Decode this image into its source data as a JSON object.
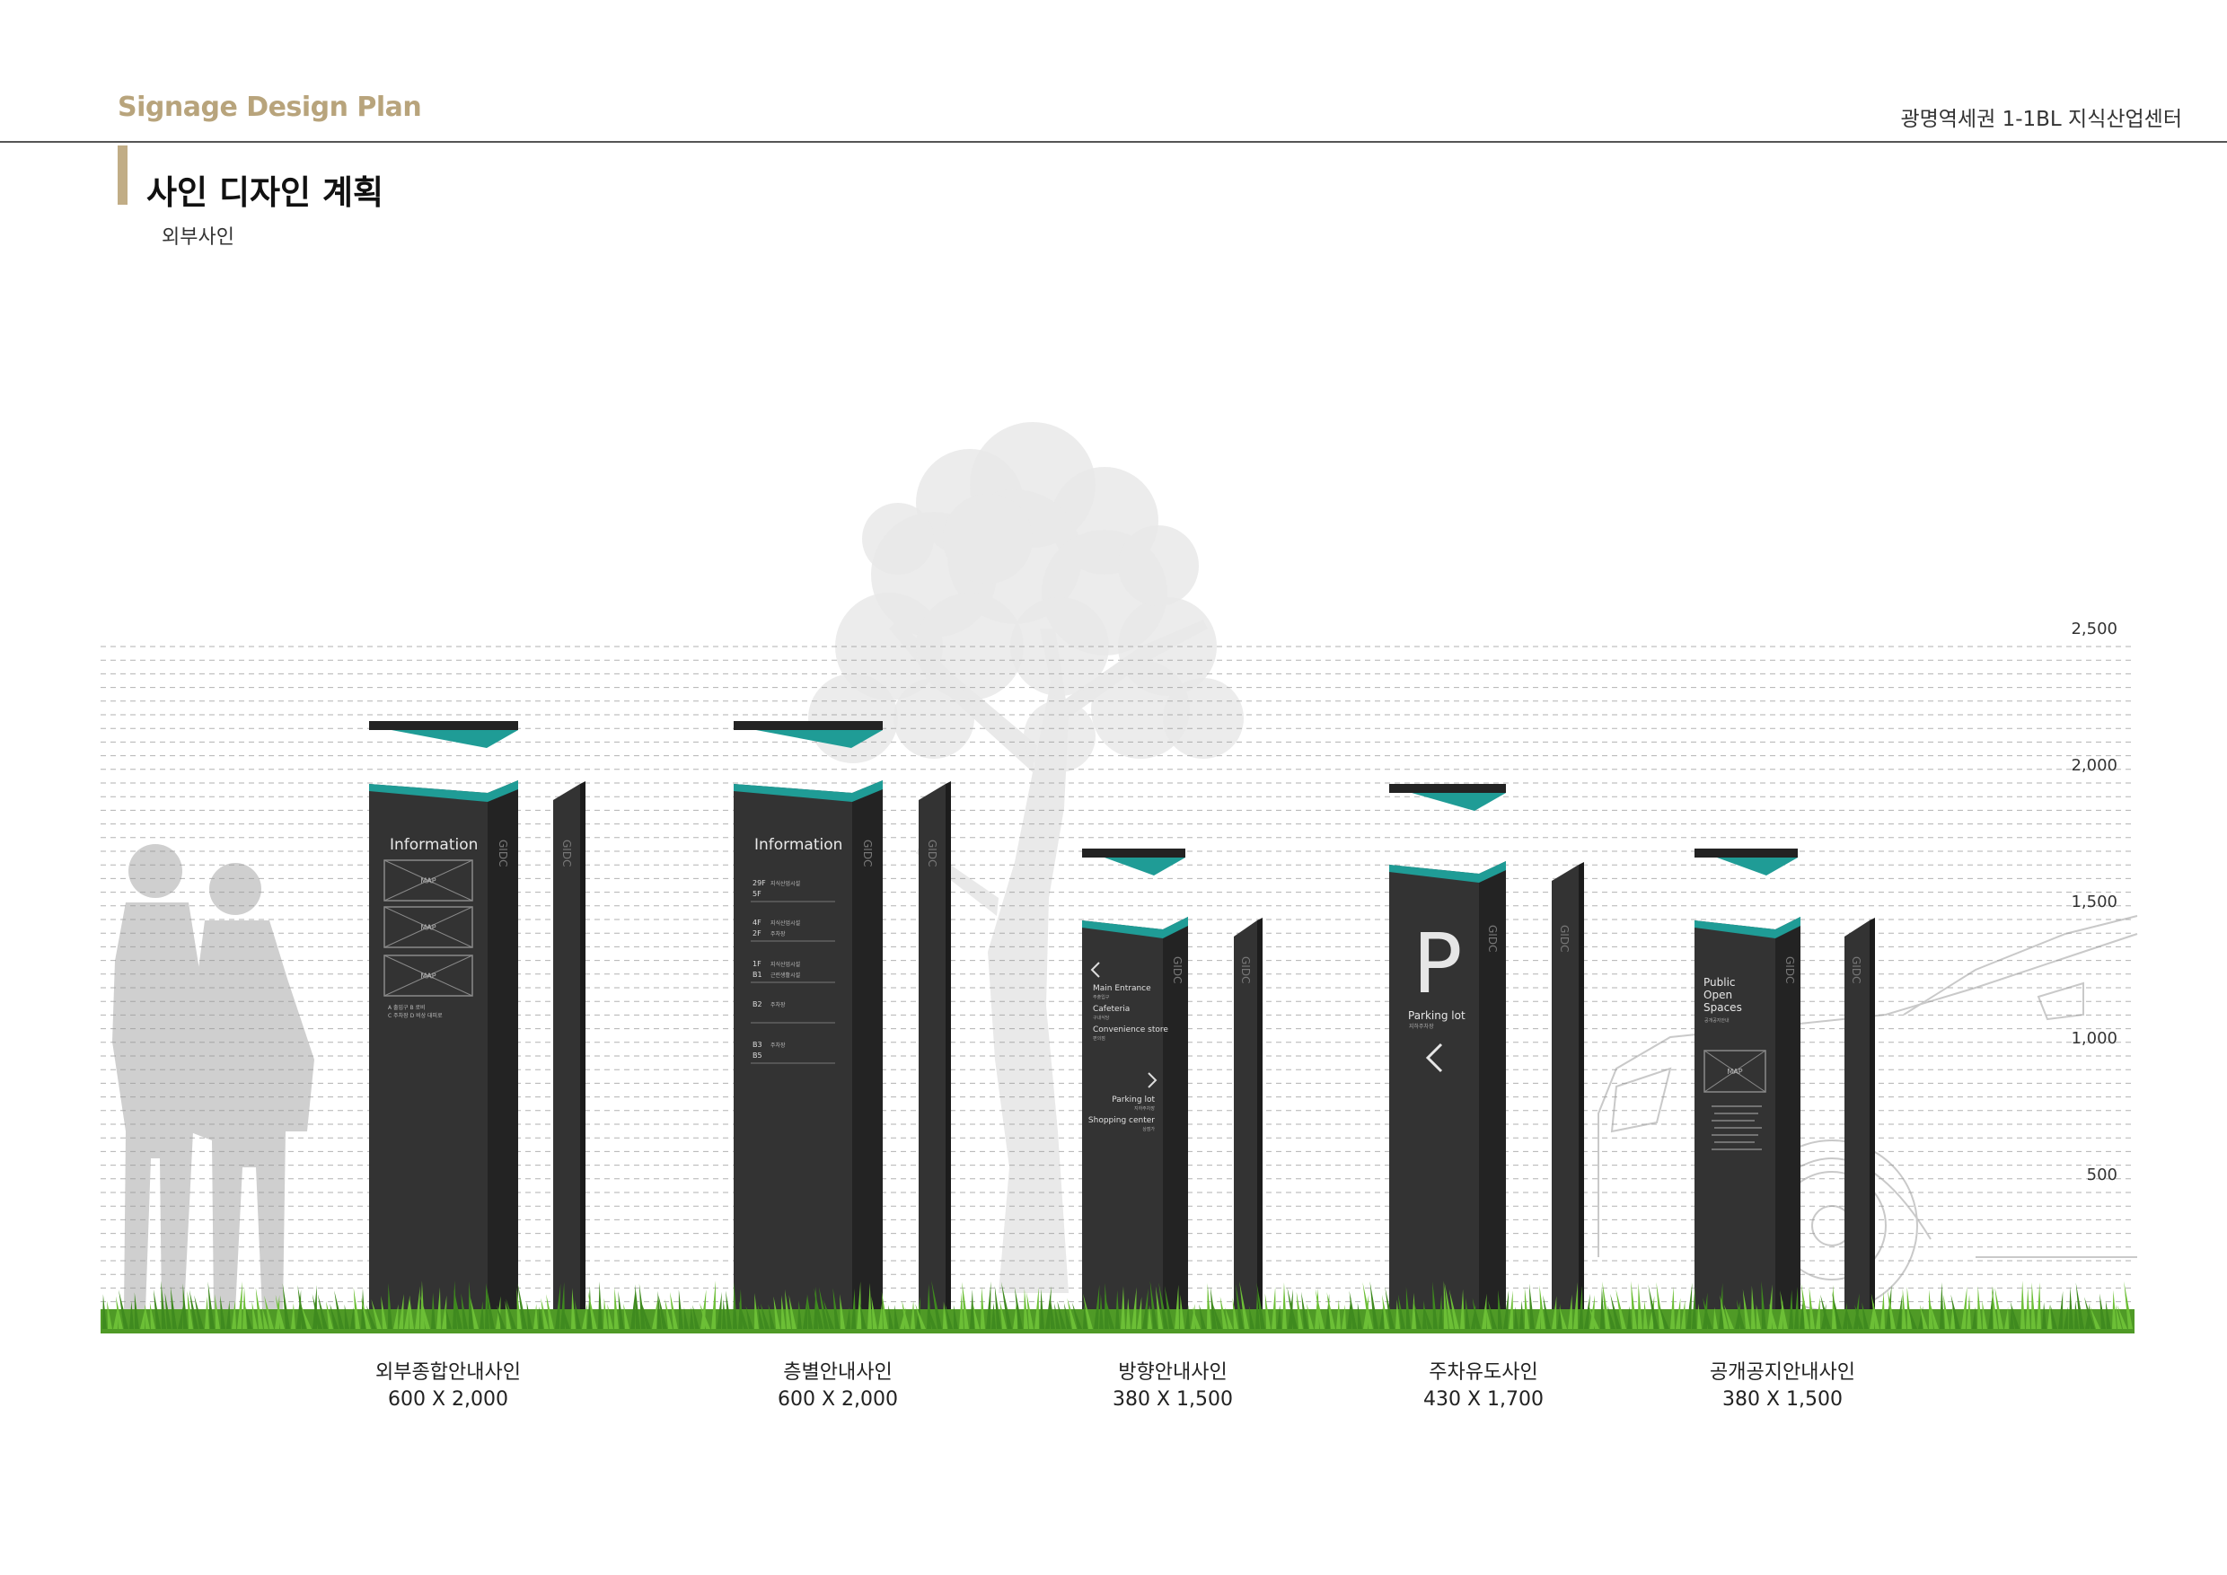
{
  "header": {
    "doc_title": "Signage Design Plan",
    "project": "광명역세권 1-1BL 지식산업센터"
  },
  "section": {
    "title": "사인 디자인 계획",
    "subtitle": "외부사인"
  },
  "scale": {
    "ticks": [
      "2,500",
      "2,000",
      "1,500",
      "1,000",
      "500"
    ]
  },
  "colors": {
    "pillar": "#333333",
    "pillar_side": "#232323",
    "accent": "#1f9c96",
    "grid": "#999999",
    "gold": "#b8a47c",
    "grass": "#5aa52c"
  },
  "signs": [
    {
      "name": "외부종합안내사인",
      "size": "600 X 2,000",
      "face_title": "Information",
      "brand": "GIDC",
      "map_label": "MAP",
      "legend": [
        "A 출입구",
        "B 로비",
        "C 주차장",
        "D 비상 대피로"
      ]
    },
    {
      "name": "층별안내사인",
      "size": "600 X 2,000",
      "face_title": "Information",
      "brand": "GIDC",
      "floors": [
        {
          "floor": "29F",
          "desc": "지식산업시설"
        },
        {
          "floor": "5F",
          "desc": ""
        },
        {
          "floor": "4F",
          "desc": "지식산업시설"
        },
        {
          "floor": "2F",
          "desc": "주차장"
        },
        {
          "floor": "1F",
          "desc": "지식산업시설"
        },
        {
          "floor": "B1",
          "desc": "근린생활시설"
        },
        {
          "floor": "B2",
          "desc": "주차장"
        },
        {
          "floor": "B3",
          "desc": "주차장"
        },
        {
          "floor": "B5",
          "desc": ""
        }
      ]
    },
    {
      "name": "방향안내사인",
      "size": "380 X 1,500",
      "brand": "GIDC",
      "directions_left": [
        {
          "en": "Main Entrance",
          "ko": "주출입구"
        },
        {
          "en": "Cafeteria",
          "ko": "구내식당"
        },
        {
          "en": "Convenience store",
          "ko": "편의점"
        }
      ],
      "directions_right": [
        {
          "en": "Parking lot",
          "ko": "지하주차장"
        },
        {
          "en": "Shopping center",
          "ko": "상점가"
        }
      ]
    },
    {
      "name": "주차유도사인",
      "size": "430 X 1,700",
      "brand": "GIDC",
      "symbol": "P",
      "face_title": "Parking lot",
      "face_sub": "지하주차장"
    },
    {
      "name": "공개공지안내사인",
      "size": "380 X 1,500",
      "brand": "GIDC",
      "face_title_lines": [
        "Public",
        "Open",
        "Spaces"
      ],
      "face_sub": "공개공지안내",
      "map_label": "MAP"
    }
  ]
}
